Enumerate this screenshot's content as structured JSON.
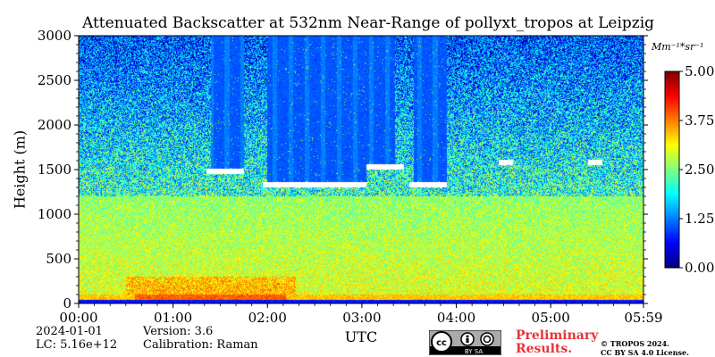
{
  "chart_data": {
    "type": "heatmap",
    "title": "Attenuated Backscatter at 532nm Near-Range of pollyxt_tropos at Leipzig",
    "xlabel": "UTC",
    "ylabel": "Height (m)",
    "x_ticks": [
      "00:00",
      "01:00",
      "02:00",
      "03:00",
      "04:00",
      "05:00",
      "05:59"
    ],
    "x_range_hours": [
      0,
      5.983
    ],
    "y_ticks": [
      0,
      500,
      1000,
      1500,
      2000,
      2500,
      3000
    ],
    "ylim": [
      0,
      3000
    ],
    "colorbar": {
      "unit_label": "Mm⁻¹*sr⁻¹",
      "ticks": [
        "0.00",
        "1.25",
        "2.50",
        "3.75",
        "5.00"
      ],
      "range": [
        0,
        5
      ],
      "colormap": "jet"
    },
    "features": {
      "surface_layer_top_m": 100,
      "boundary_layer_top_m": 1200,
      "cloud_base_m": [
        {
          "t_start": 1.35,
          "t_end": 1.75,
          "height": 1450
        },
        {
          "t_start": 1.95,
          "t_end": 3.05,
          "height": 1300
        },
        {
          "t_start": 3.05,
          "t_end": 3.45,
          "height": 1500
        },
        {
          "t_start": 3.5,
          "t_end": 3.9,
          "height": 1300
        },
        {
          "t_start": 4.45,
          "t_end": 4.6,
          "height": 1550
        },
        {
          "t_start": 5.4,
          "t_end": 5.55,
          "height": 1550
        }
      ],
      "clear_above_cloud_windows": [
        [
          1.4,
          1.8
        ],
        [
          2.0,
          3.35
        ],
        [
          3.55,
          3.9
        ]
      ]
    }
  },
  "meta": {
    "date": "2024-01-01",
    "lc": "LC: 5.16e+12",
    "version": "Version: 3.6",
    "calibration": "Calibration: Raman",
    "preliminary": "Preliminary Results.",
    "copyright_line1": "© TROPOS 2024.",
    "copyright_line2": "CC BY SA 4.0 License.",
    "license_badge": "BY SA"
  }
}
